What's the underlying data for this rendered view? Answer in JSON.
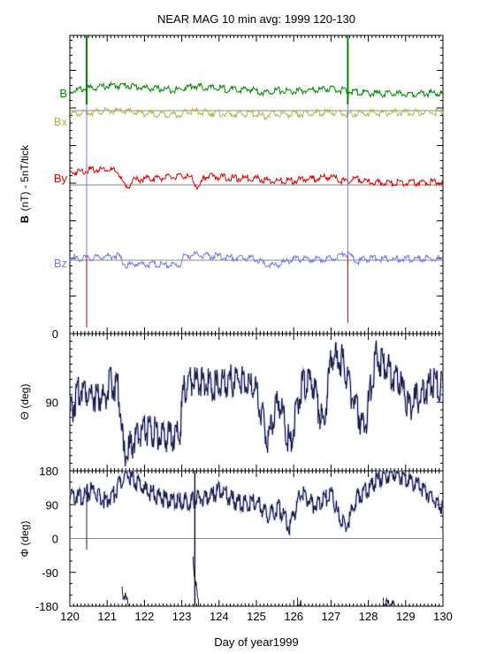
{
  "chart_data": [
    {
      "type": "line",
      "title": "NEAR MAG 10 min avg: 1999 120-130",
      "ylabel_bold": "B",
      "ylabel": "(nT) - 5nT/tick",
      "xlim": [
        120,
        130
      ],
      "zero_label": "0",
      "series": [
        {
          "name": "B",
          "color": "#008800",
          "baseline": 5.0,
          "x": [
            120.0,
            120.5,
            121.0,
            121.5,
            122.0,
            122.5,
            122.95,
            123.05,
            123.3,
            123.6,
            124.0,
            124.5,
            124.9,
            125.2,
            125.5,
            126.0,
            126.5,
            127.0,
            127.4,
            127.7,
            128.0,
            128.5,
            129.0,
            129.5,
            130.0
          ],
          "y": [
            5.6,
            6.2,
            6.7,
            6.9,
            6.3,
            6.0,
            5.9,
            6.3,
            6.8,
            6.4,
            6.2,
            5.8,
            6.0,
            5.2,
            5.8,
            5.5,
            5.8,
            6.2,
            5.6,
            5.4,
            5.1,
            5.0,
            5.0,
            5.1,
            5.2
          ]
        },
        {
          "name": "Bx",
          "color": "#b3b34d",
          "baseline": 5.0,
          "x": [
            120.0,
            120.5,
            121.0,
            121.5,
            122.0,
            122.5,
            122.95,
            123.05,
            123.3,
            123.6,
            124.0,
            124.5,
            124.9,
            125.2,
            125.5,
            126.0,
            126.5,
            127.0,
            127.4,
            127.7,
            128.0,
            128.5,
            129.0,
            129.5,
            130.0
          ],
          "y": [
            4.3,
            4.8,
            5.1,
            5.0,
            4.6,
            4.4,
            4.3,
            4.7,
            5.0,
            4.8,
            4.6,
            4.3,
            4.6,
            4.0,
            4.5,
            4.3,
            4.6,
            4.9,
            4.4,
            4.6,
            4.7,
            4.7,
            4.8,
            4.8,
            4.9
          ]
        },
        {
          "name": "By",
          "color": "#dd0000",
          "baseline": 0.0,
          "x": [
            120.0,
            120.5,
            121.0,
            121.3,
            121.5,
            121.7,
            122.0,
            122.5,
            122.95,
            123.05,
            123.3,
            123.45,
            123.6,
            124.0,
            124.5,
            124.9,
            125.2,
            125.5,
            126.0,
            126.5,
            127.0,
            127.4,
            127.7,
            128.0,
            128.5,
            129.0,
            129.5,
            130.0
          ],
          "y": [
            2.5,
            3.1,
            3.4,
            2.5,
            -1.0,
            0.8,
            1.2,
            1.4,
            1.6,
            2.0,
            1.0,
            -1.2,
            1.8,
            1.6,
            1.2,
            1.4,
            1.0,
            0.6,
            0.8,
            1.2,
            1.6,
            0.5,
            1.2,
            0.4,
            0.2,
            0.3,
            0.4,
            0.6
          ]
        },
        {
          "name": "Bz",
          "color": "#7777ee",
          "baseline": 0.0,
          "x": [
            120.0,
            120.5,
            121.0,
            121.3,
            121.5,
            121.7,
            122.0,
            122.5,
            122.95,
            123.05,
            123.3,
            123.6,
            124.0,
            124.5,
            124.9,
            125.2,
            125.5,
            126.0,
            126.5,
            127.0,
            127.4,
            127.7,
            128.0,
            128.5,
            129.0,
            129.5,
            130.0
          ],
          "y": [
            0.5,
            0.4,
            0.9,
            1.0,
            -1.2,
            -0.8,
            -0.9,
            -1.0,
            -1.1,
            0.8,
            1.2,
            1.0,
            0.8,
            0.4,
            0.6,
            -0.8,
            -1.2,
            0.3,
            0.2,
            0.4,
            1.6,
            -0.3,
            0.4,
            0.2,
            0.3,
            0.3,
            0.4
          ]
        }
      ]
    },
    {
      "type": "line",
      "ylabel": "Θ (deg)",
      "xlim": [
        120,
        130
      ],
      "ylim": [
        0,
        180
      ],
      "yticks": [
        90
      ],
      "series": [
        {
          "color": "#222244",
          "x": [
            120.0,
            120.3,
            120.6,
            120.9,
            121.1,
            121.3,
            121.45,
            121.6,
            121.8,
            122.0,
            122.3,
            122.6,
            122.95,
            123.05,
            123.3,
            123.6,
            124.0,
            124.4,
            124.8,
            125.0,
            125.3,
            125.6,
            125.9,
            126.2,
            126.5,
            126.8,
            127.0,
            127.3,
            127.6,
            127.9,
            128.2,
            128.5,
            128.8,
            129.1,
            129.4,
            129.7,
            130.0
          ],
          "y": [
            75,
            110,
            100,
            95,
            115,
            110,
            20,
            30,
            45,
            55,
            50,
            45,
            50,
            105,
            120,
            115,
            110,
            120,
            115,
            105,
            40,
            95,
            35,
            110,
            115,
            55,
            150,
            145,
            90,
            55,
            150,
            135,
            120,
            85,
            100,
            115,
            110
          ]
        }
      ]
    },
    {
      "type": "line",
      "ylabel": "Φ (deg)",
      "xlim": [
        120,
        130
      ],
      "ylim": [
        -180,
        180
      ],
      "yticks": [
        180,
        90,
        0,
        -90,
        -180
      ],
      "xticks": [
        120,
        121,
        122,
        123,
        124,
        125,
        126,
        127,
        128,
        129,
        130
      ],
      "xlabel": "Day of year1999",
      "zero_line": 0,
      "series": [
        {
          "color": "#222244",
          "x": [
            120.0,
            120.3,
            120.6,
            120.9,
            121.2,
            121.5,
            121.7,
            122.0,
            122.4,
            122.8,
            123.1,
            123.3,
            123.5,
            123.8,
            124.0,
            124.4,
            124.8,
            125.0,
            125.3,
            125.6,
            125.9,
            126.2,
            126.5,
            126.8,
            127.0,
            127.2,
            127.4,
            127.7,
            128.0,
            128.3,
            128.6,
            128.9,
            129.2,
            129.5,
            129.8,
            130.0
          ],
          "y": [
            120,
            110,
            130,
            100,
            120,
            170,
            160,
            130,
            110,
            95,
            100,
            100,
            105,
            110,
            130,
            100,
            90,
            100,
            60,
            80,
            30,
            130,
            90,
            100,
            120,
            60,
            30,
            110,
            130,
            160,
            175,
            165,
            150,
            130,
            100,
            80
          ]
        }
      ]
    }
  ]
}
